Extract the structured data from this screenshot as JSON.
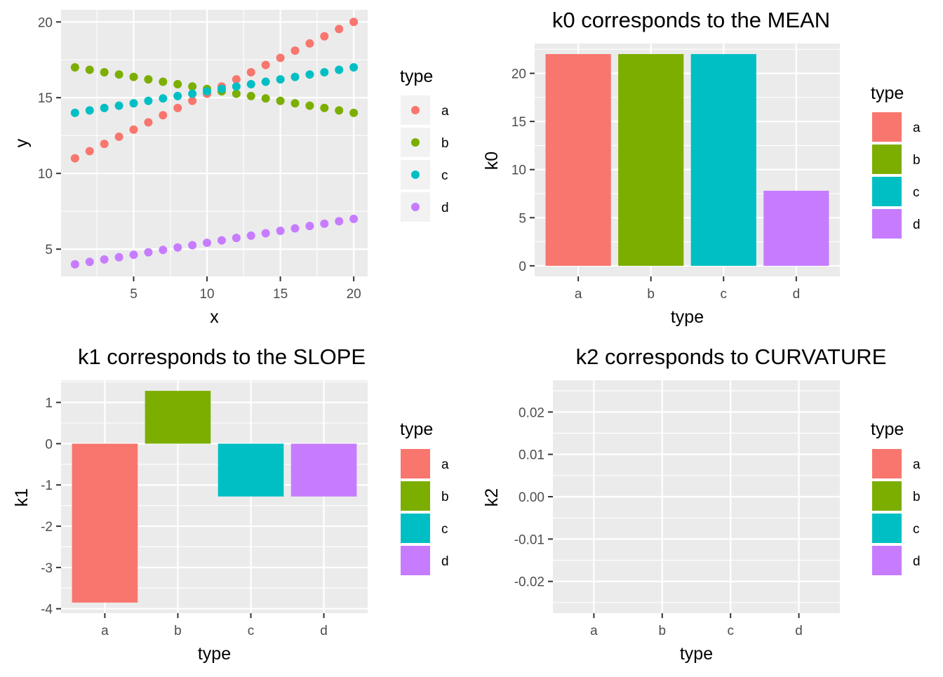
{
  "colors": {
    "a": "#F8766D",
    "b": "#7CAE00",
    "c": "#00BFC4",
    "d": "#C77CFF",
    "panel_bg": "#EBEBEB",
    "grid": "#FFFFFF"
  },
  "chart_data": [
    {
      "type": "scatter",
      "title": "",
      "xlabel": "x",
      "ylabel": "y",
      "xlim": [
        0.05,
        20.95
      ],
      "ylim": [
        3.2,
        20.8
      ],
      "xticks": [
        5,
        10,
        15,
        20
      ],
      "yticks": [
        5,
        10,
        15,
        20
      ],
      "legend": {
        "title": "type",
        "keys": [
          "a",
          "b",
          "c",
          "d"
        ]
      },
      "x": [
        1,
        2,
        3,
        4,
        5,
        6,
        7,
        8,
        9,
        10,
        11,
        12,
        13,
        14,
        15,
        16,
        17,
        18,
        19,
        20
      ],
      "series": [
        {
          "name": "a",
          "values": [
            11.0,
            11.47,
            11.95,
            12.42,
            12.89,
            13.37,
            13.84,
            14.32,
            14.79,
            15.26,
            15.74,
            16.21,
            16.68,
            17.16,
            17.63,
            18.11,
            18.58,
            19.05,
            19.53,
            20.0
          ]
        },
        {
          "name": "b",
          "values": [
            17.0,
            16.84,
            16.68,
            16.53,
            16.37,
            16.21,
            16.05,
            15.89,
            15.74,
            15.58,
            15.42,
            15.26,
            15.11,
            14.95,
            14.79,
            14.63,
            14.47,
            14.32,
            14.16,
            14.0
          ]
        },
        {
          "name": "c",
          "values": [
            14.0,
            14.16,
            14.32,
            14.47,
            14.63,
            14.79,
            14.95,
            15.11,
            15.26,
            15.42,
            15.58,
            15.74,
            15.89,
            16.05,
            16.21,
            16.37,
            16.53,
            16.68,
            16.84,
            17.0
          ]
        },
        {
          "name": "d",
          "values": [
            4.0,
            4.16,
            4.32,
            4.47,
            4.63,
            4.79,
            4.95,
            5.11,
            5.26,
            5.42,
            5.58,
            5.74,
            5.89,
            6.05,
            6.21,
            6.37,
            6.53,
            6.68,
            6.84,
            7.0
          ]
        }
      ]
    },
    {
      "type": "bar",
      "title": "k0 corresponds to the MEAN",
      "xlabel": "type",
      "ylabel": "k0",
      "categories": [
        "a",
        "b",
        "c",
        "d"
      ],
      "values": [
        22.0,
        22.0,
        22.0,
        7.8
      ],
      "ylim": [
        -1.1,
        23.1
      ],
      "yticks": [
        0,
        5,
        10,
        15,
        20
      ],
      "legend": {
        "title": "type",
        "keys": [
          "a",
          "b",
          "c",
          "d"
        ]
      }
    },
    {
      "type": "bar",
      "title": "k1 corresponds to the SLOPE",
      "xlabel": "type",
      "ylabel": "k1",
      "categories": [
        "a",
        "b",
        "c",
        "d"
      ],
      "values": [
        -3.85,
        1.28,
        -1.28,
        -1.28
      ],
      "ylim": [
        -4.107,
        1.537
      ],
      "yticks": [
        1,
        0,
        -1,
        -2,
        -3,
        -4
      ],
      "legend": {
        "title": "type",
        "keys": [
          "a",
          "b",
          "c",
          "d"
        ]
      }
    },
    {
      "type": "bar",
      "title": "k2 corresponds to CURVATURE",
      "xlabel": "type",
      "ylabel": "k2",
      "categories": [
        "a",
        "b",
        "c",
        "d"
      ],
      "values": [
        0,
        0,
        0,
        0
      ],
      "ylim": [
        -0.0275,
        0.0275
      ],
      "yticks": [
        0.02,
        0.01,
        0.0,
        -0.01,
        -0.02
      ],
      "ytick_labels": [
        "0.02",
        "0.01",
        "0.00",
        "-0.01",
        "-0.02"
      ],
      "legend": {
        "title": "type",
        "keys": [
          "a",
          "b",
          "c",
          "d"
        ]
      }
    }
  ]
}
